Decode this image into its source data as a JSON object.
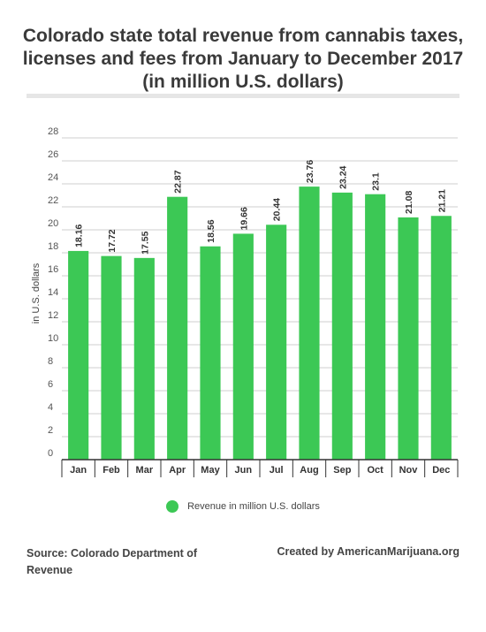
{
  "title": "Colorado state total revenue from cannabis taxes, licenses and fees from January to December 2017 (in million U.S. dollars)",
  "source": "Source: Colorado Department of Revenue",
  "credit": "Created by AmericanMarijuana.org",
  "legend_label": "Revenue in million U.S. dollars",
  "colors": {
    "bar": "#3cc855",
    "grid": "#cfcfcf",
    "axis": "#333333"
  },
  "chart_data": {
    "type": "bar",
    "categories": [
      "Jan",
      "Feb",
      "Mar",
      "Apr",
      "May",
      "Jun",
      "Jul",
      "Aug",
      "Sep",
      "Oct",
      "Nov",
      "Dec"
    ],
    "series": [
      {
        "name": "Revenue in million U.S. dollars",
        "values": [
          18.16,
          17.72,
          17.55,
          22.87,
          18.56,
          19.66,
          20.44,
          23.76,
          23.24,
          23.1,
          21.08,
          21.21
        ]
      }
    ],
    "ylabel": "in U.S. dollars",
    "xlabel": "",
    "ylim": [
      0,
      28
    ],
    "yticks": [
      0,
      2,
      4,
      6,
      8,
      10,
      12,
      14,
      16,
      18,
      20,
      22,
      24,
      26,
      28
    ],
    "grid": true,
    "legend": "bottom-center"
  }
}
